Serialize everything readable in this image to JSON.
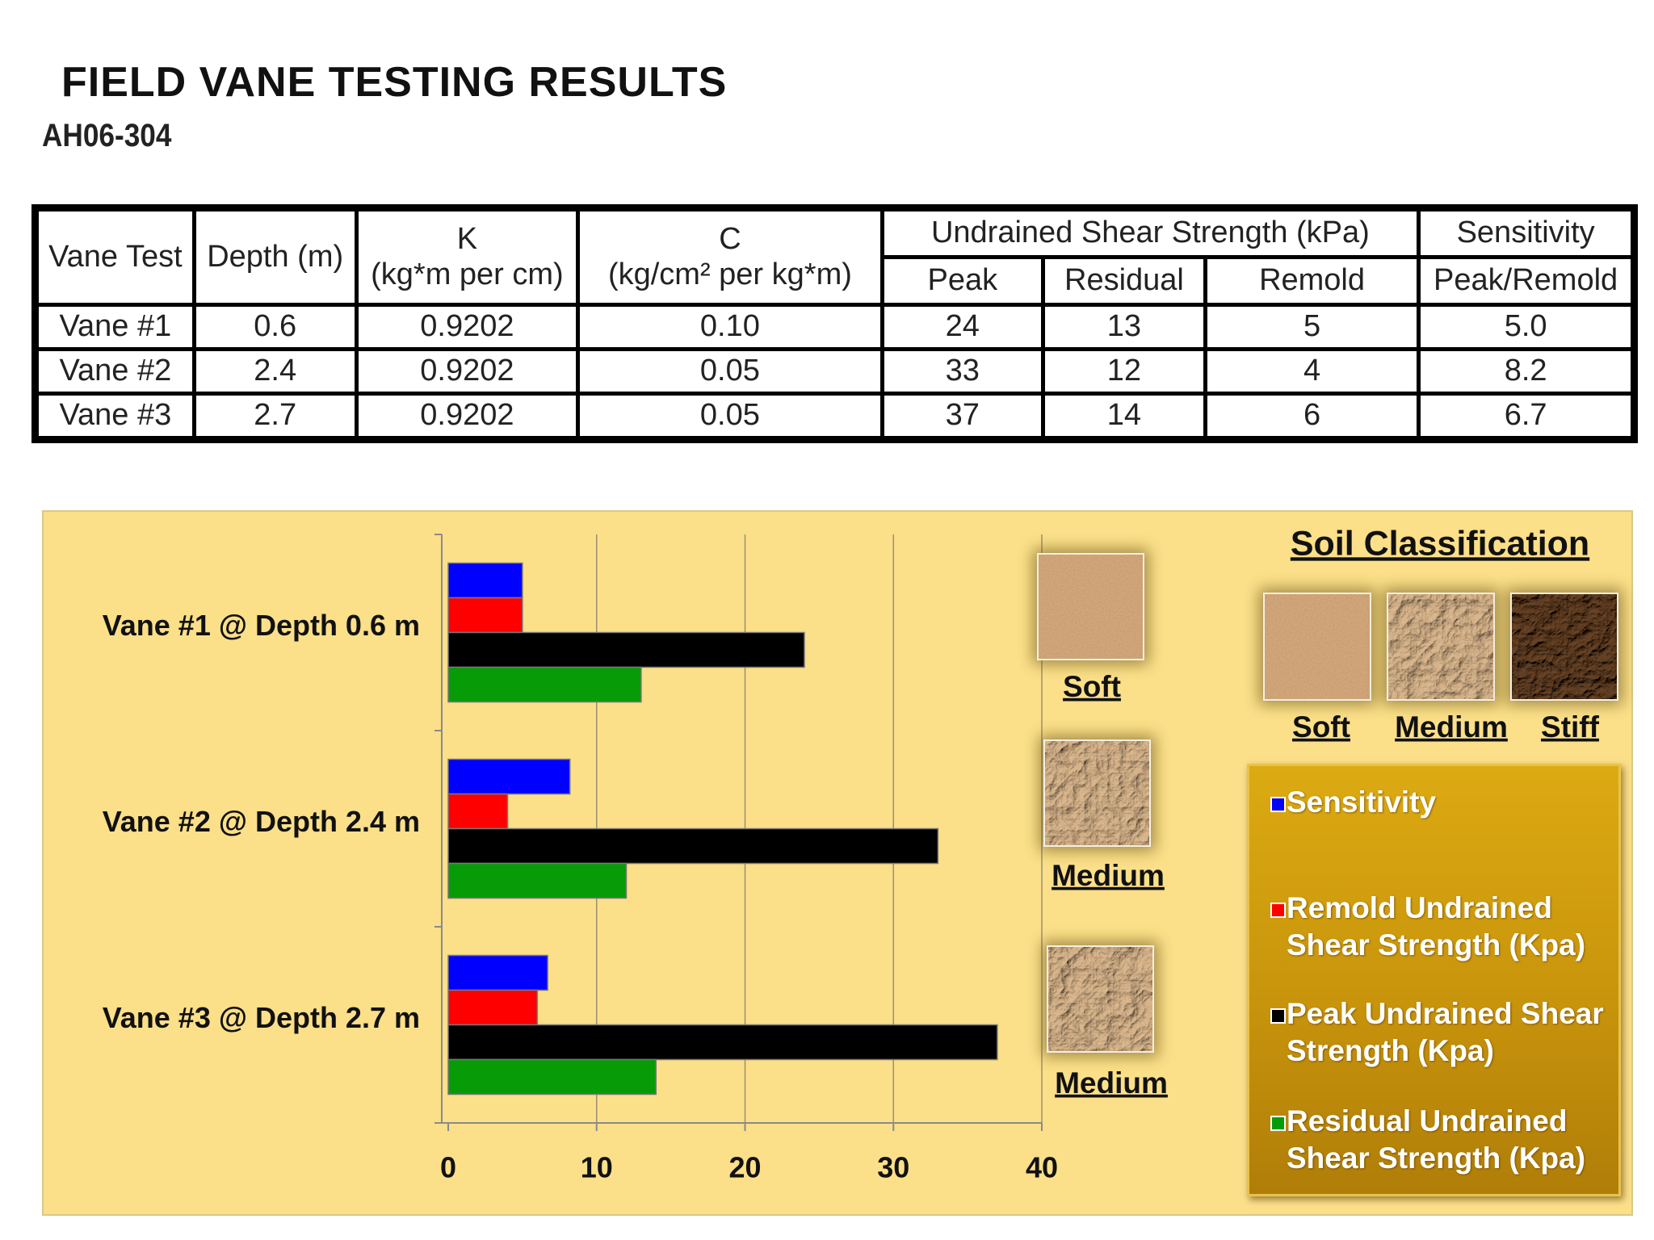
{
  "header": {
    "title": "FIELD VANE TESTING RESULTS",
    "subtitle": "AH06-304"
  },
  "table": {
    "header": [
      "Vane Test",
      "Depth (m)",
      [
        "K",
        "(kg*m per cm)"
      ],
      [
        "C",
        "(kg/cm² per kg*m)"
      ],
      "Undrained Shear Strength (kPa)",
      [
        "Sensitivity",
        "Peak/Remold"
      ]
    ],
    "subheader": [
      "Peak",
      "Residual",
      "Remold"
    ],
    "rows": [
      [
        "Vane #1",
        "0.6",
        "0.9202",
        "0.10",
        "24",
        "13",
        "5",
        "5.0"
      ],
      [
        "Vane #2",
        "2.4",
        "0.9202",
        "0.05",
        "33",
        "12",
        "4",
        "8.2"
      ],
      [
        "Vane #3",
        "2.7",
        "0.9202",
        "0.05",
        "37",
        "14",
        "6",
        "6.7"
      ]
    ]
  },
  "chart_data": {
    "type": "bar",
    "orientation": "horizontal",
    "categories": [
      "Vane #1 @ Depth 0.6 m",
      "Vane #2 @ Depth 2.4 m",
      "Vane #3 @ Depth 2.7 m"
    ],
    "series": [
      {
        "name": "Sensitivity",
        "color": "#0000ff",
        "values": [
          5.0,
          8.2,
          6.7
        ]
      },
      {
        "name": "Remold Undrained Shear Strength (Kpa)",
        "color": "#ff0000",
        "values": [
          5,
          4,
          6
        ]
      },
      {
        "name": "Peak Undrained Shear Strength (Kpa)",
        "color": "#000000",
        "values": [
          24,
          33,
          37
        ]
      },
      {
        "name": "Residual Undrained Shear Strength (Kpa)",
        "color": "#079c07",
        "values": [
          13,
          12,
          14
        ]
      }
    ],
    "xlim": [
      0,
      40
    ],
    "xticks": [
      0,
      10,
      20,
      30,
      40
    ],
    "grid": true,
    "annotations": [
      "Soft",
      "Medium",
      "Medium"
    ],
    "soil_classification": {
      "title": "Soil Classification",
      "classes": [
        "Soft",
        "Medium",
        "Stiff"
      ]
    }
  }
}
